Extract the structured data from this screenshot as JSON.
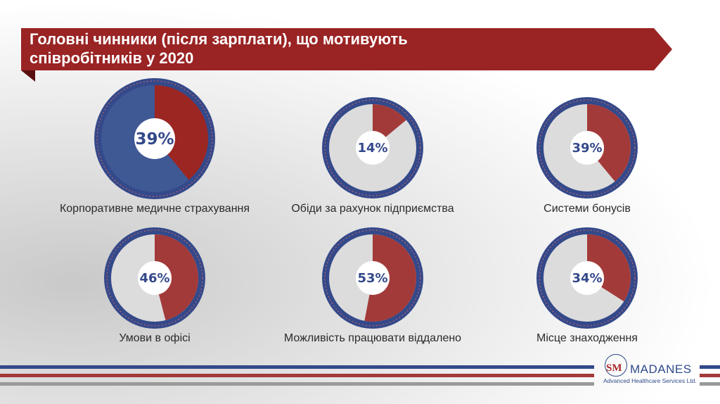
{
  "header": {
    "title_line1": "Головні чинники (після зарплати), що мотивують",
    "title_line2": "співробітників у 2020"
  },
  "colors": {
    "banner": "#9a2323",
    "ring": "#34498a",
    "slice": "#a33a3a",
    "slice_highlight": "#9c2622",
    "rest": "#dcdcdc",
    "rest_highlight": "#3f5994",
    "text": "#34498a"
  },
  "chart_data": [
    {
      "type": "pie",
      "label": "Корпоративне медичне страхування",
      "value": 39,
      "value_label": "39%",
      "highlighted": true
    },
    {
      "type": "pie",
      "label": "Обіди за рахунок підприємства",
      "value": 14,
      "value_label": "14%"
    },
    {
      "type": "pie",
      "label": "Системи бонусів",
      "value": 39,
      "value_label": "39%"
    },
    {
      "type": "pie",
      "label": "Умови в офісі",
      "value": 46,
      "value_label": "46%"
    },
    {
      "type": "pie",
      "label": "Можливість працювати віддалено",
      "value": 53,
      "value_label": "53%"
    },
    {
      "type": "pie",
      "label": "Місце знаходження",
      "value": 34,
      "value_label": "34%"
    }
  ],
  "logo": {
    "mark": "SM",
    "name": "MADANES",
    "subtitle": "Advanced Healthcare Services Ltd."
  }
}
